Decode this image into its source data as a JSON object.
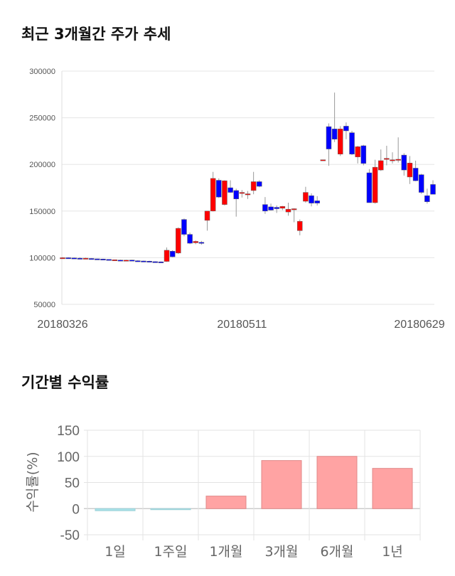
{
  "section1": {
    "title": "최근 3개월간 주가 추세"
  },
  "section2": {
    "title": "기간별 수익률"
  },
  "chart_data": [
    {
      "type": "candlestick",
      "title": "최근 3개월간 주가 추세",
      "ylim": [
        50000,
        300000
      ],
      "yticks": [
        "300000",
        "250000",
        "200000",
        "150000",
        "100000",
        "50000"
      ],
      "ytick_values": [
        300000,
        250000,
        200000,
        150000,
        100000,
        50000
      ],
      "xtick_labels": [
        {
          "index": 0,
          "label": "20180326"
        },
        {
          "index": 31,
          "label": "20180511"
        },
        {
          "index": 64,
          "label": "20180629"
        }
      ],
      "colors": {
        "up": "#ff0000",
        "down": "#0000ff"
      },
      "ohlc": [
        [
          99000,
          100500,
          98800,
          100000
        ],
        [
          100000,
          100500,
          99500,
          99800
        ],
        [
          99800,
          100200,
          99000,
          99500
        ],
        [
          99500,
          100300,
          99000,
          99300
        ],
        [
          99300,
          100000,
          98800,
          99500
        ],
        [
          99200,
          99600,
          98600,
          98800
        ],
        [
          98800,
          99000,
          98300,
          98500
        ],
        [
          98600,
          98900,
          97800,
          98000
        ],
        [
          98200,
          98400,
          97400,
          97600
        ],
        [
          97600,
          98000,
          97000,
          97800
        ],
        [
          97500,
          97900,
          96800,
          97200
        ],
        [
          97200,
          97800,
          96600,
          97400
        ],
        [
          97500,
          97800,
          96600,
          97000
        ],
        [
          96800,
          97300,
          96200,
          96600
        ],
        [
          96500,
          96900,
          96000,
          96300
        ],
        [
          96300,
          96700,
          95600,
          95900
        ],
        [
          95800,
          96200,
          95400,
          95600
        ],
        [
          95600,
          96000,
          95300,
          95500
        ],
        [
          96000,
          111000,
          95500,
          108000
        ],
        [
          107000,
          108000,
          100500,
          101000
        ],
        [
          105000,
          132500,
          104000,
          131500
        ],
        [
          141000,
          142000,
          123000,
          125000
        ],
        [
          125000,
          127000,
          114500,
          115500
        ],
        [
          116000,
          118500,
          114500,
          117500
        ],
        [
          116500,
          118000,
          114000,
          115500
        ],
        [
          140000,
          150000,
          129000,
          150000
        ],
        [
          150000,
          192000,
          149500,
          185000
        ],
        [
          183000,
          185000,
          164000,
          165000
        ],
        [
          157000,
          183000,
          156000,
          182500
        ],
        [
          175000,
          183000,
          169500,
          170000
        ],
        [
          172000,
          174000,
          144000,
          163000
        ],
        [
          170000,
          172500,
          164500,
          170000
        ],
        [
          168000,
          171500,
          163000,
          168500
        ],
        [
          172000,
          192000,
          168000,
          181500
        ],
        [
          181500,
          183000,
          175500,
          176500
        ],
        [
          157000,
          165000,
          147000,
          150000
        ],
        [
          154500,
          158000,
          150500,
          151000
        ],
        [
          154000,
          156000,
          148000,
          152500
        ],
        [
          153000,
          155500,
          151000,
          155000
        ],
        [
          149000,
          159000,
          145000,
          152000
        ],
        [
          152500,
          153000,
          138000,
          152500
        ],
        [
          129000,
          141000,
          124000,
          139000
        ],
        [
          160500,
          176000,
          159000,
          170000
        ],
        [
          166500,
          169000,
          155000,
          158500
        ],
        [
          161000,
          166000,
          156000,
          158500
        ],
        [
          205000,
          205000,
          205000,
          205000
        ],
        [
          240500,
          244000,
          198500,
          216500
        ],
        [
          238000,
          277000,
          224000,
          227000
        ],
        [
          211000,
          241000,
          209000,
          238000
        ],
        [
          241000,
          245000,
          227000,
          236000
        ],
        [
          234000,
          236000,
          210000,
          211000
        ],
        [
          208000,
          220000,
          201000,
          219000
        ],
        [
          220000,
          221000,
          199000,
          201000
        ],
        [
          191000,
          195000,
          159000,
          159000
        ],
        [
          159000,
          205000,
          158000,
          197000
        ],
        [
          194000,
          216000,
          193000,
          204000
        ],
        [
          206000,
          220000,
          199000,
          206500
        ],
        [
          204000,
          213000,
          201000,
          205000
        ],
        [
          205500,
          229000,
          202000,
          205500
        ],
        [
          210000,
          212000,
          188000,
          194000
        ],
        [
          186500,
          209000,
          179000,
          201500
        ],
        [
          196000,
          204000,
          182000,
          182500
        ],
        [
          189000,
          190000,
          168500,
          170000
        ],
        [
          166500,
          174000,
          158000,
          160000
        ],
        [
          178500,
          183000,
          170000,
          168000
        ]
      ]
    },
    {
      "type": "bar",
      "title": "기간별 수익률",
      "ylabel": "수익률(%)",
      "ylim": [
        -50,
        150
      ],
      "yticks": [
        "150",
        "100",
        "50",
        "0",
        "-50"
      ],
      "ytick_values": [
        150,
        100,
        50,
        0,
        -50
      ],
      "categories": [
        "1일",
        "1주일",
        "1개월",
        "3개월",
        "6개월",
        "1년"
      ],
      "values": [
        -4,
        -1,
        24,
        92,
        100,
        77
      ],
      "colors": {
        "positive": "#ffa3a3",
        "negative": "#a9e3ea"
      }
    }
  ]
}
